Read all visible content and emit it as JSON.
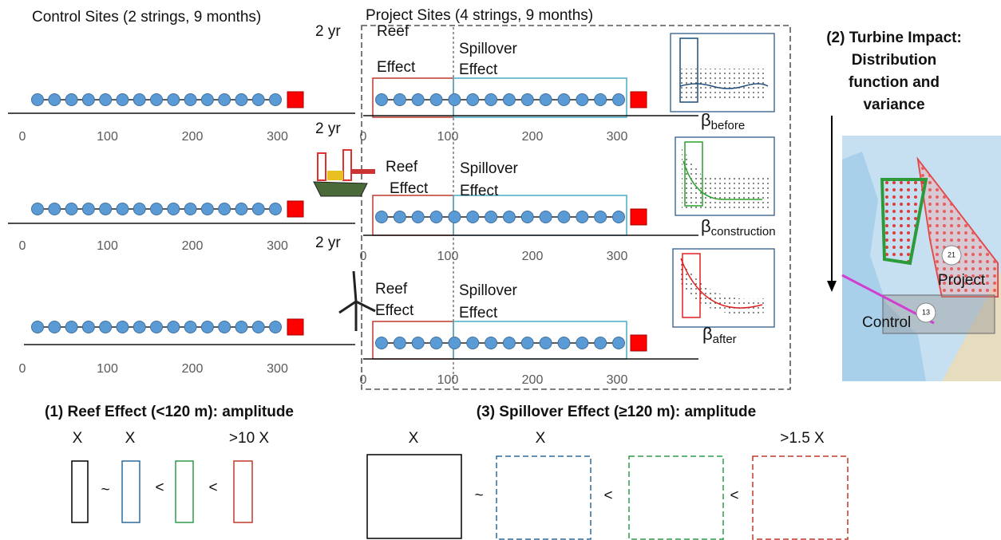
{
  "control": {
    "title": "Control Sites (2 strings, 9 months)",
    "ticks": [
      0,
      100,
      200,
      300
    ]
  },
  "project": {
    "title": "Project Sites (4 strings, 9 months)",
    "duration_label": "2 yr",
    "ticks": [
      0,
      100,
      200,
      300
    ],
    "reef_label": [
      "Reef",
      "Effect"
    ],
    "spillover_label": [
      "Spillover",
      "Effect"
    ],
    "betas": [
      {
        "symbol": "β",
        "subscript": "before"
      },
      {
        "symbol": "β",
        "subscript": "construction"
      },
      {
        "symbol": "β",
        "subscript": "after"
      }
    ]
  },
  "turbine_impact": {
    "title_lines": [
      "(2) Turbine Impact:",
      "Distribution",
      "function and",
      "variance"
    ]
  },
  "map": {
    "labels": [
      "Project",
      "Control"
    ],
    "markers": [
      "21",
      "13"
    ]
  },
  "reef_amplitude": {
    "title": "(1) Reef Effect (<120 m): amplitude",
    "labels": [
      "X",
      "X",
      ">10 X"
    ],
    "relations": [
      "~",
      "<",
      "<"
    ]
  },
  "spillover_amplitude": {
    "title": "(3) Spillover Effect (≥120 m): amplitude",
    "labels": [
      "X",
      "X",
      ">1.5 X"
    ],
    "relations": [
      "~",
      "<",
      "<"
    ]
  }
}
